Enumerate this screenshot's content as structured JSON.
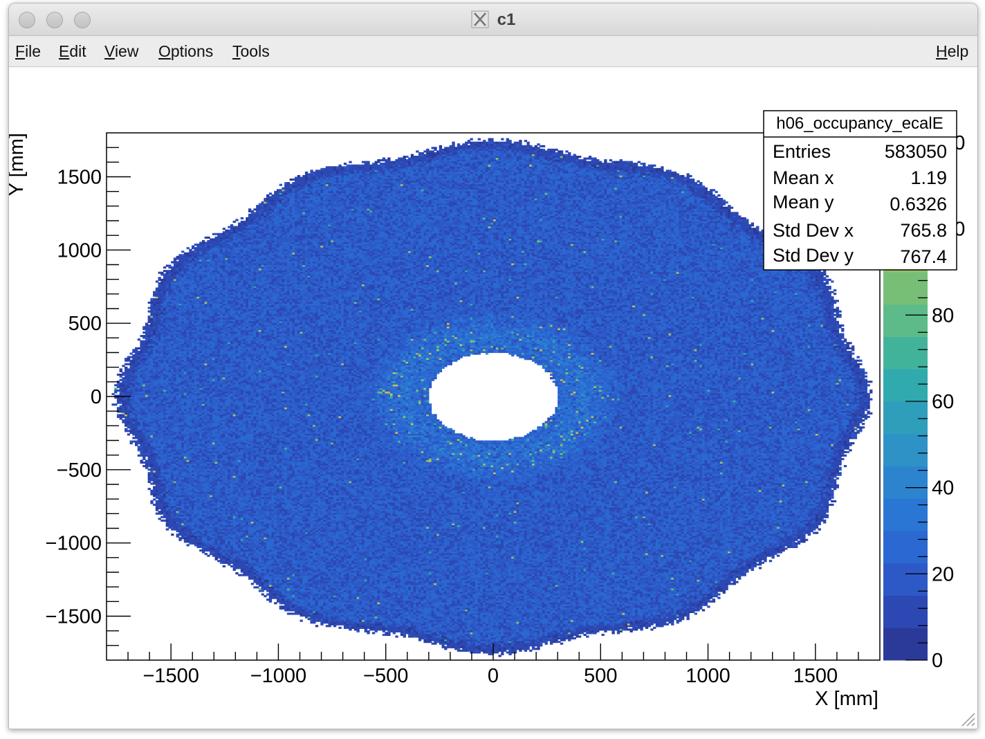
{
  "window": {
    "title": "c1",
    "title_icon": "x11-icon"
  },
  "menu": {
    "items": [
      {
        "label": "File"
      },
      {
        "label": "Edit"
      },
      {
        "label": "View"
      },
      {
        "label": "Options"
      },
      {
        "label": "Tools"
      }
    ],
    "help": "Help"
  },
  "stats": {
    "title": "h06_occupancy_ecalE",
    "rows": [
      {
        "label": "Entries",
        "value": "583050"
      },
      {
        "label": "Mean x",
        "value": "1.19"
      },
      {
        "label": "Mean y",
        "value": "0.6326"
      },
      {
        "label": "Std Dev x",
        "value": "765.8"
      },
      {
        "label": "Std Dev y",
        "value": "767.4"
      }
    ]
  },
  "chart_data": {
    "type": "heatmap",
    "title": "",
    "xlabel": "X [mm]",
    "ylabel": "Y [mm]",
    "xlim": [
      -1800,
      1800
    ],
    "ylim": [
      -1800,
      1800
    ],
    "x_ticks": [
      -1500,
      -1000,
      -500,
      0,
      500,
      1000,
      1500
    ],
    "y_ticks": [
      -1500,
      -1000,
      -500,
      0,
      500,
      1000,
      1500
    ],
    "x_tick_labels": [
      "−1500",
      "−1000",
      "−500",
      "0",
      "500",
      "1000",
      "1500"
    ],
    "y_tick_labels": [
      "−1500",
      "−1000",
      "−500",
      "0",
      "500",
      "1000",
      "1500"
    ],
    "z_ticks": [
      0,
      20,
      40,
      60,
      80,
      100,
      120
    ],
    "z_tick_labels": [
      "0",
      "20",
      "40",
      "60",
      "80",
      "100",
      "120"
    ],
    "zlim": [
      0,
      120
    ],
    "shape": "annulus",
    "inner_radius": 300,
    "outer_radius": 1720,
    "typical_content": 20,
    "hotspot_ring_radius": 420,
    "palette": [
      "#2b3a99",
      "#2c48b3",
      "#2d59c7",
      "#2b68d1",
      "#2a76d4",
      "#2c84cf",
      "#2e92c6",
      "#2f9ebb",
      "#31aaad",
      "#42b39b",
      "#5cbb88",
      "#77bf77",
      "#94c267",
      "#b3c25c",
      "#ccbf57",
      "#e1bb52"
    ],
    "grid": false,
    "legend": "colorbar-right"
  }
}
